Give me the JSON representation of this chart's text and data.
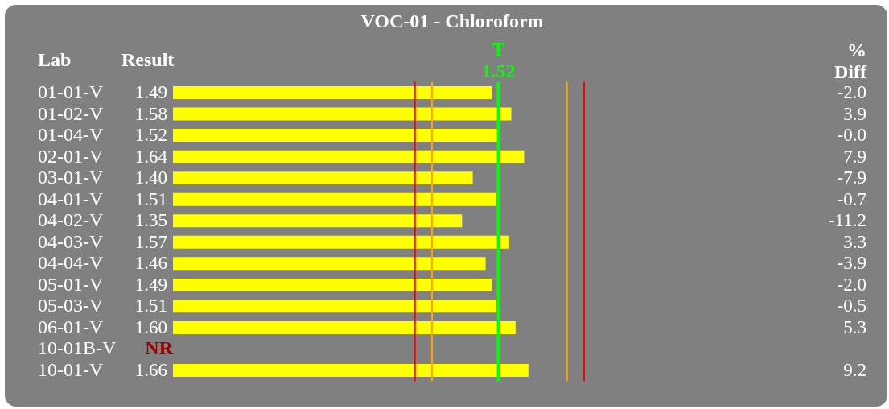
{
  "chart_data": {
    "type": "bar",
    "orientation": "horizontal",
    "title": "VOC-01 - Chloroform",
    "xlabel": "Result",
    "ylabel": "Lab",
    "categories": [
      "01-01-V",
      "01-02-V",
      "01-04-V",
      "02-01-V",
      "03-01-V",
      "04-01-V",
      "04-02-V",
      "04-03-V",
      "04-04-V",
      "05-01-V",
      "05-03-V",
      "06-01-V",
      "10-01B-V",
      "10-01-V"
    ],
    "values": [
      1.49,
      1.58,
      1.52,
      1.64,
      1.4,
      1.51,
      1.35,
      1.57,
      1.46,
      1.49,
      1.51,
      1.6,
      null,
      1.66
    ],
    "value_labels": [
      "1.49",
      "1.58",
      "1.52",
      "1.64",
      "1.40",
      "1.51",
      "1.35",
      "1.57",
      "1.46",
      "1.49",
      "1.51",
      "1.60",
      "NR",
      "1.66"
    ],
    "color": "#ffff00",
    "ref_lines": [
      {
        "axis": "x",
        "value": 1.13,
        "color": "#ff0000"
      },
      {
        "axis": "x",
        "value": 1.21,
        "color": "#ffa500"
      },
      {
        "axis": "x",
        "value": 1.52,
        "label": "T 1.52",
        "color": "#00ff00"
      },
      {
        "axis": "x",
        "value": 1.84,
        "color": "#ffa500"
      },
      {
        "axis": "x",
        "value": 1.92,
        "color": "#ff0000"
      }
    ],
    "annotations": [
      "% Diff",
      "-2.0",
      "3.9",
      "-0.0",
      "7.9",
      "-7.9",
      "-0.7",
      "-11.2",
      "3.3",
      "-3.9",
      "-2.0",
      "-0.5",
      "5.3",
      "9.2"
    ]
  }
}
